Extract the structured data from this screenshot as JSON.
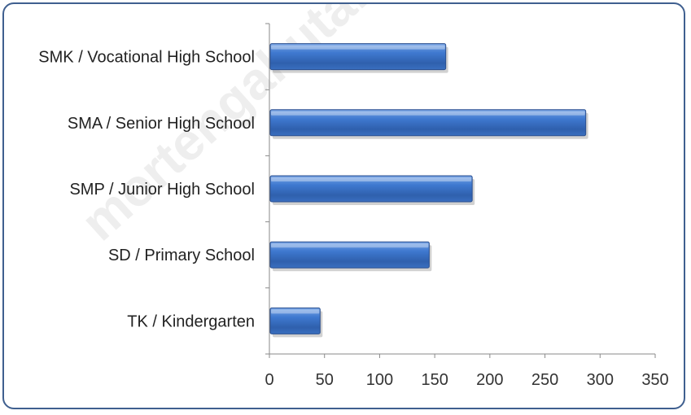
{
  "chart_data": {
    "type": "bar",
    "orientation": "horizontal",
    "categories": [
      "SMK / Vocational High School",
      "SMA / Senior High School",
      "SMP / Junior High School",
      "SD /  Primary School",
      "TK / Kindergarten"
    ],
    "values": [
      160,
      287,
      184,
      145,
      46
    ],
    "xlim": [
      0,
      350
    ],
    "xticks": [
      0,
      50,
      100,
      150,
      200,
      250,
      300,
      350
    ],
    "grid": false,
    "bar_color": "#3a6fc0",
    "bar_edge_color": "#2a4f8f",
    "title": "",
    "xlabel": "",
    "ylabel": "",
    "watermark": "mortengahutarakab.bp"
  }
}
